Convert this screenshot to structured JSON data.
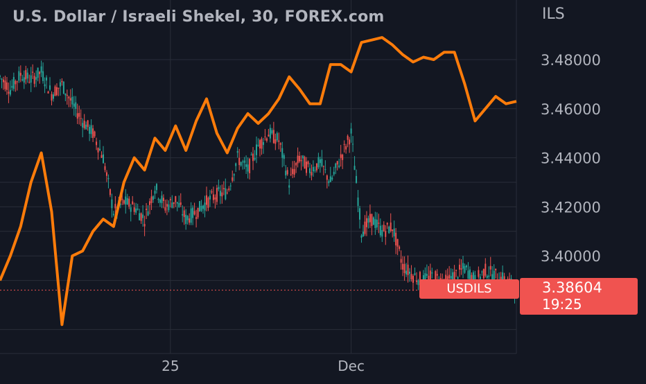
{
  "header": {
    "title": "U.S. Dollar / Israeli Shekel, 30, FOREX.com",
    "currency": "ILS"
  },
  "badges": {
    "symbol": "USDILS",
    "last_price": "3.38604",
    "countdown": "19:25"
  },
  "colors": {
    "background": "#131722",
    "grid": "#2a2e39",
    "text": "#b2b5be",
    "up_candle": "#26a69a",
    "down_candle": "#ef5350",
    "comparison_line": "#ff7c0a",
    "price_badge": "#f05350"
  },
  "chart_data": {
    "type": "line",
    "title": "U.S. Dollar / Israeli Shekel, 30, FOREX.com",
    "ylabel": "ILS",
    "ylim": [
      3.36,
      3.5
    ],
    "y_ticks": [
      "3.48000",
      "3.46000",
      "3.44000",
      "3.42000",
      "3.40000"
    ],
    "y_tick_values": [
      3.48,
      3.46,
      3.44,
      3.42,
      3.4
    ],
    "x_tick_labels": [
      "25",
      "Dec"
    ],
    "x_tick_positions": [
      33,
      68
    ],
    "x_range": [
      0,
      100
    ],
    "grid": true,
    "last_price": 3.38604,
    "series": [
      {
        "name": "USDILS",
        "style": "candles",
        "x": [
          0,
          2,
          4,
          6,
          8,
          10,
          12,
          14,
          16,
          18,
          20,
          22,
          24,
          26,
          28,
          30,
          32,
          34,
          36,
          38,
          40,
          42,
          44,
          46,
          48,
          50,
          52,
          54,
          56,
          58,
          60,
          62,
          64,
          66,
          68,
          70,
          72,
          74,
          76,
          78,
          80,
          82,
          84,
          86,
          88,
          90,
          92,
          94,
          96,
          98,
          100
        ],
        "values": [
          3.473,
          3.468,
          3.474,
          3.472,
          3.475,
          3.466,
          3.47,
          3.462,
          3.455,
          3.45,
          3.44,
          3.418,
          3.422,
          3.42,
          3.415,
          3.428,
          3.42,
          3.423,
          3.415,
          3.418,
          3.422,
          3.425,
          3.426,
          3.44,
          3.435,
          3.445,
          3.45,
          3.447,
          3.43,
          3.44,
          3.435,
          3.438,
          3.43,
          3.44,
          3.45,
          3.41,
          3.415,
          3.41,
          3.412,
          3.396,
          3.392,
          3.39,
          3.392,
          3.389,
          3.392,
          3.395,
          3.39,
          3.394,
          3.392,
          3.39,
          3.386
        ]
      },
      {
        "name": "",
        "style": "line",
        "x": [
          0,
          2,
          4,
          6,
          8,
          10,
          12,
          14,
          16,
          18,
          20,
          22,
          24,
          26,
          28,
          30,
          32,
          34,
          36,
          38,
          40,
          42,
          44,
          46,
          48,
          50,
          52,
          54,
          56,
          58,
          60,
          62,
          64,
          66,
          68,
          70,
          72,
          74,
          76,
          78,
          80,
          82,
          84,
          86,
          88,
          90,
          92,
          94,
          96,
          98,
          100
        ],
        "values": [
          3.39,
          3.4,
          3.412,
          3.43,
          3.442,
          3.418,
          3.372,
          3.4,
          3.402,
          3.41,
          3.415,
          3.412,
          3.43,
          3.44,
          3.435,
          3.448,
          3.443,
          3.453,
          3.443,
          3.455,
          3.464,
          3.45,
          3.442,
          3.452,
          3.458,
          3.454,
          3.458,
          3.464,
          3.473,
          3.468,
          3.462,
          3.462,
          3.478,
          3.478,
          3.475,
          3.487,
          3.488,
          3.489,
          3.486,
          3.482,
          3.479,
          3.481,
          3.48,
          3.483,
          3.483,
          3.47,
          3.455,
          3.46,
          3.465,
          3.462,
          3.463
        ]
      }
    ]
  }
}
